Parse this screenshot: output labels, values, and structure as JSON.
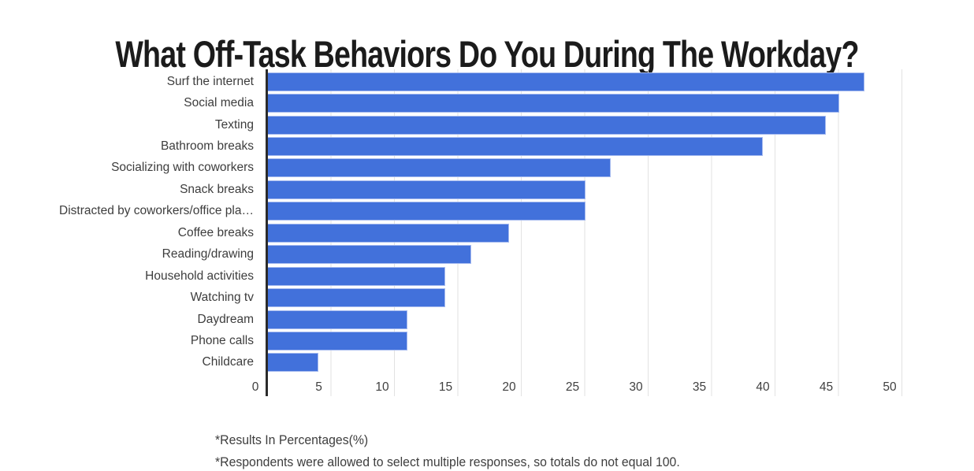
{
  "chart_data": {
    "type": "bar",
    "orientation": "horizontal",
    "title": "What Off-Task Behaviors Do You During The Workday?",
    "categories": [
      "Surf the internet",
      "Social media",
      "Texting",
      "Bathroom breaks",
      "Socializing with coworkers",
      "Snack breaks",
      "Distracted by coworkers/office pla…",
      "Coffee breaks",
      "Reading/drawing",
      "Household activities",
      "Watching tv",
      "Daydream",
      "Phone calls",
      "Childcare"
    ],
    "values": [
      47,
      45,
      44,
      39,
      27,
      25,
      25,
      19,
      16,
      14,
      14,
      11,
      11,
      4
    ],
    "xlabel": "",
    "ylabel": "",
    "xlim": [
      0,
      50
    ],
    "xticks": [
      0,
      5,
      10,
      15,
      20,
      25,
      30,
      35,
      40,
      45,
      50
    ],
    "grid": true,
    "legend": "none",
    "footnotes": [
      "*Results In Percentages(%)",
      "*Respondents were allowed to select multiple responses, so totals do not equal 100."
    ],
    "colors": {
      "bar_fill": "#4271db",
      "bar_border": "#a4b9ef",
      "gridline": "#e2e2e2",
      "axis_line": "#2b2b2b",
      "category_label": "#3d3d3d",
      "tick_label": "#404040",
      "title": "#1b1b1b",
      "footnote": "#3e3e3e",
      "background": "#ffffff"
    }
  }
}
